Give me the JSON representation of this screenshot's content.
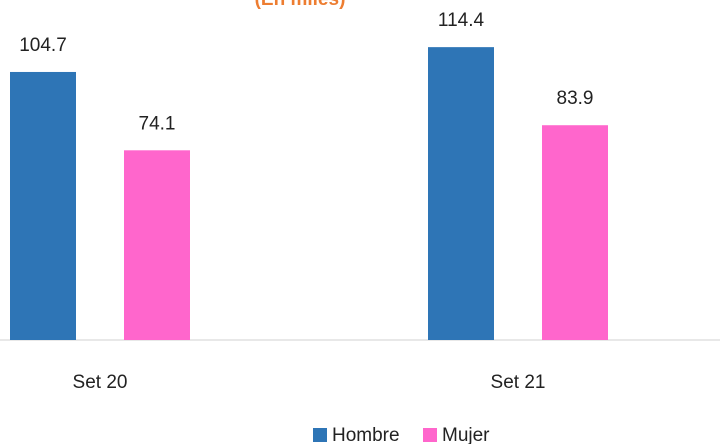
{
  "chart_data": {
    "type": "bar",
    "subtitle": "(En miles)",
    "categories": [
      "Set 20",
      "Set 21"
    ],
    "series": [
      {
        "name": "Hombre",
        "color": "#2e75b6",
        "values": [
          104.7,
          114.4
        ]
      },
      {
        "name": "Mujer",
        "color": "#ff66cc",
        "values": [
          74.1,
          83.9
        ]
      }
    ]
  }
}
